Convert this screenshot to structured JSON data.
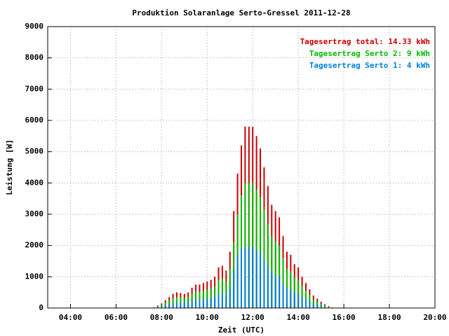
{
  "chart_data": {
    "type": "impulse",
    "title": "Produktion Solaranlage Serto-Gressel 2011-12-28",
    "xlabel": "Zeit (UTC)",
    "ylabel": "Leistung [W]",
    "x": [
      450,
      460,
      470,
      480,
      490,
      500,
      510,
      520,
      530,
      540,
      550,
      560,
      570,
      580,
      590,
      600,
      610,
      620,
      630,
      640,
      650,
      660,
      670,
      680,
      690,
      700,
      710,
      720,
      730,
      740,
      750,
      760,
      770,
      780,
      790,
      800,
      810,
      820,
      830,
      840,
      850,
      860,
      870,
      880,
      890,
      900,
      910,
      920,
      930
    ],
    "series": [
      {
        "name": "Tagesertrag total: 14.33 kWh",
        "color": "#cc0000",
        "values": [
          0,
          20,
          80,
          150,
          250,
          350,
          450,
          500,
          480,
          450,
          500,
          650,
          750,
          750,
          800,
          850,
          900,
          1000,
          1300,
          1350,
          1200,
          1800,
          3100,
          4300,
          5200,
          5800,
          5800,
          5800,
          5500,
          5100,
          4500,
          3900,
          3300,
          3100,
          2900,
          2300,
          1800,
          1700,
          1400,
          1300,
          1000,
          800,
          600,
          400,
          300,
          200,
          120,
          60,
          20
        ]
      },
      {
        "name": "Tagesertrag Serto 2: 9 kWh",
        "color": "#00bb00",
        "values": [
          0,
          15,
          60,
          110,
          180,
          250,
          320,
          350,
          340,
          320,
          350,
          450,
          520,
          520,
          560,
          590,
          620,
          700,
          900,
          940,
          840,
          1250,
          2100,
          3000,
          3600,
          4000,
          4000,
          4000,
          3800,
          3550,
          3150,
          2700,
          2300,
          2150,
          2000,
          1600,
          1250,
          1180,
          970,
          900,
          700,
          560,
          420,
          280,
          210,
          140,
          85,
          40,
          15
        ]
      },
      {
        "name": "Tagesertrag Serto 1: 4 kWh",
        "color": "#0080dd",
        "values": [
          0,
          8,
          30,
          55,
          90,
          125,
          160,
          175,
          170,
          160,
          175,
          225,
          260,
          260,
          280,
          295,
          310,
          350,
          450,
          470,
          420,
          650,
          1200,
          1700,
          1900,
          1950,
          1950,
          1950,
          1850,
          1750,
          1550,
          1350,
          1150,
          1050,
          1000,
          800,
          630,
          590,
          490,
          450,
          350,
          280,
          210,
          140,
          105,
          70,
          42,
          20,
          8
        ]
      }
    ],
    "xlim": [
      180,
      1200
    ],
    "xticks": [
      {
        "value": 240,
        "label": "04:00"
      },
      {
        "value": 360,
        "label": "06:00"
      },
      {
        "value": 480,
        "label": "08:00"
      },
      {
        "value": 600,
        "label": "10:00"
      },
      {
        "value": 720,
        "label": "12:00"
      },
      {
        "value": 840,
        "label": "14:00"
      },
      {
        "value": 960,
        "label": "16:00"
      },
      {
        "value": 1080,
        "label": "18:00"
      },
      {
        "value": 1200,
        "label": "20:00"
      }
    ],
    "ylim": [
      0,
      9000
    ],
    "yticks": [
      0,
      1000,
      2000,
      3000,
      4000,
      5000,
      6000,
      7000,
      8000,
      9000
    ],
    "grid": true,
    "legend": "upper right"
  }
}
